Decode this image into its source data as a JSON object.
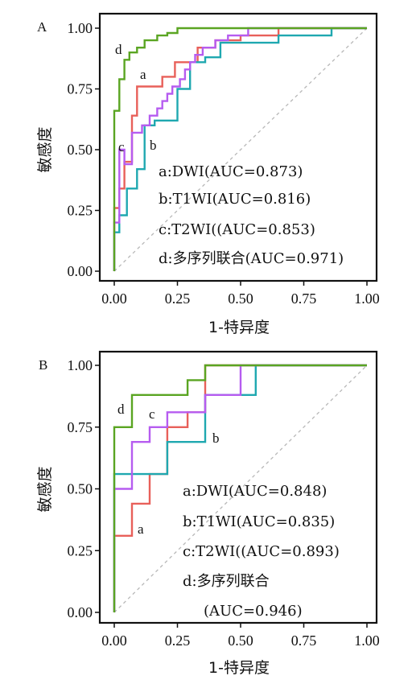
{
  "colors": {
    "a": "#e8605a",
    "b": "#1fa8b0",
    "c": "#b65cf0",
    "d": "#5aa522",
    "diag": "#b8b8b8"
  },
  "chart_data": [
    {
      "panel": "A",
      "type": "line",
      "xlabel": "1-特异度",
      "ylabel": "敏感度",
      "xlim": [
        0,
        1
      ],
      "ylim": [
        0,
        1
      ],
      "xticks": [
        "0.00",
        "0.25",
        "0.50",
        "0.75",
        "1.00"
      ],
      "yticks": [
        "0.00",
        "0.25",
        "0.50",
        "0.75",
        "1.00"
      ],
      "legend": [
        "a:DWI(AUC=0.873)",
        "b:T1WI(AUC=0.816)",
        "c:T2WI((AUC=0.853)",
        "d:多序列联合(AUC=0.971)"
      ],
      "series": [
        {
          "name": "a",
          "x": [
            0,
            0,
            0.02,
            0.02,
            0.04,
            0.04,
            0.07,
            0.07,
            0.09,
            0.09,
            0.19,
            0.19,
            0.24,
            0.24,
            0.33,
            0.33,
            0.4,
            0.4,
            0.5,
            0.5,
            0.65,
            0.65,
            1.0
          ],
          "y": [
            0,
            0.26,
            0.26,
            0.34,
            0.34,
            0.45,
            0.45,
            0.64,
            0.64,
            0.76,
            0.76,
            0.8,
            0.8,
            0.86,
            0.86,
            0.92,
            0.92,
            0.95,
            0.95,
            0.97,
            0.97,
            1.0,
            1.0
          ]
        },
        {
          "name": "b",
          "x": [
            0,
            0,
            0.02,
            0.02,
            0.05,
            0.05,
            0.09,
            0.09,
            0.12,
            0.12,
            0.16,
            0.16,
            0.25,
            0.25,
            0.3,
            0.3,
            0.36,
            0.36,
            0.42,
            0.42,
            0.65,
            0.65,
            0.86,
            0.86,
            1.0
          ],
          "y": [
            0,
            0.16,
            0.16,
            0.23,
            0.23,
            0.34,
            0.34,
            0.42,
            0.42,
            0.6,
            0.6,
            0.62,
            0.62,
            0.75,
            0.75,
            0.86,
            0.86,
            0.88,
            0.88,
            0.94,
            0.94,
            0.97,
            0.97,
            1.0,
            1.0
          ]
        },
        {
          "name": "c",
          "x": [
            0,
            0,
            0.02,
            0.02,
            0.04,
            0.04,
            0.07,
            0.07,
            0.11,
            0.11,
            0.14,
            0.14,
            0.17,
            0.17,
            0.19,
            0.19,
            0.21,
            0.21,
            0.23,
            0.23,
            0.26,
            0.26,
            0.28,
            0.28,
            0.3,
            0.3,
            0.32,
            0.32,
            0.35,
            0.35,
            0.4,
            0.4,
            0.45,
            0.45,
            0.53,
            0.53,
            1.0
          ],
          "y": [
            0,
            0.2,
            0.2,
            0.5,
            0.5,
            0.44,
            0.44,
            0.57,
            0.57,
            0.6,
            0.6,
            0.64,
            0.64,
            0.67,
            0.67,
            0.7,
            0.7,
            0.73,
            0.73,
            0.76,
            0.76,
            0.79,
            0.79,
            0.83,
            0.83,
            0.86,
            0.86,
            0.89,
            0.89,
            0.92,
            0.92,
            0.95,
            0.95,
            0.97,
            0.97,
            1.0,
            1.0
          ]
        },
        {
          "name": "d",
          "x": [
            0,
            0,
            0.02,
            0.02,
            0.04,
            0.04,
            0.06,
            0.06,
            0.09,
            0.09,
            0.12,
            0.12,
            0.17,
            0.17,
            0.21,
            0.21,
            0.25,
            0.25,
            1.0
          ],
          "y": [
            0,
            0.66,
            0.66,
            0.79,
            0.79,
            0.87,
            0.87,
            0.9,
            0.9,
            0.92,
            0.92,
            0.95,
            0.95,
            0.97,
            0.97,
            0.98,
            0.98,
            1.0,
            1.0
          ]
        }
      ],
      "tags": {
        "a": "a",
        "b": "b",
        "c": "c",
        "d": "d"
      }
    },
    {
      "panel": "B",
      "type": "line",
      "xlabel": "1-特异度",
      "ylabel": "敏感度",
      "xlim": [
        0,
        1
      ],
      "ylim": [
        0,
        1
      ],
      "xticks": [
        "0.00",
        "0.25",
        "0.50",
        "0.75",
        "1.00"
      ],
      "yticks": [
        "0.00",
        "0.25",
        "0.50",
        "0.75",
        "1.00"
      ],
      "legend": [
        "a:DWI(AUC=0.848)",
        "b:T1WI(AUC=0.835)",
        "c:T2WI((AUC=0.893)",
        "d:多序列联合",
        "(AUC=0.946)"
      ],
      "series": [
        {
          "name": "a",
          "x": [
            0,
            0,
            0.07,
            0.07,
            0.14,
            0.14,
            0.21,
            0.21,
            0.29,
            0.29,
            0.36,
            0.36,
            1.0
          ],
          "y": [
            0,
            0.31,
            0.31,
            0.44,
            0.44,
            0.56,
            0.56,
            0.75,
            0.75,
            0.81,
            0.81,
            1.0,
            1.0
          ]
        },
        {
          "name": "b",
          "x": [
            0,
            0,
            0.21,
            0.21,
            0.36,
            0.36,
            0.56,
            0.56,
            1.0
          ],
          "y": [
            0,
            0.56,
            0.56,
            0.69,
            0.69,
            0.88,
            0.88,
            1.0,
            1.0
          ]
        },
        {
          "name": "c",
          "x": [
            0,
            0,
            0.07,
            0.07,
            0.14,
            0.14,
            0.21,
            0.21,
            0.36,
            0.36,
            0.5,
            0.5,
            1.0
          ],
          "y": [
            0,
            0.5,
            0.5,
            0.69,
            0.69,
            0.75,
            0.75,
            0.81,
            0.81,
            0.88,
            0.88,
            1.0,
            1.0
          ]
        },
        {
          "name": "d",
          "x": [
            0,
            0,
            0.07,
            0.07,
            0.29,
            0.29,
            0.36,
            0.36,
            0.5,
            0.5,
            1.0
          ],
          "y": [
            0,
            0.75,
            0.75,
            0.88,
            0.88,
            0.94,
            0.94,
            1.0,
            1.0,
            1.0,
            1.0
          ]
        }
      ],
      "tags": {
        "a": "a",
        "b": "b",
        "c": "c",
        "d": "d"
      }
    }
  ]
}
